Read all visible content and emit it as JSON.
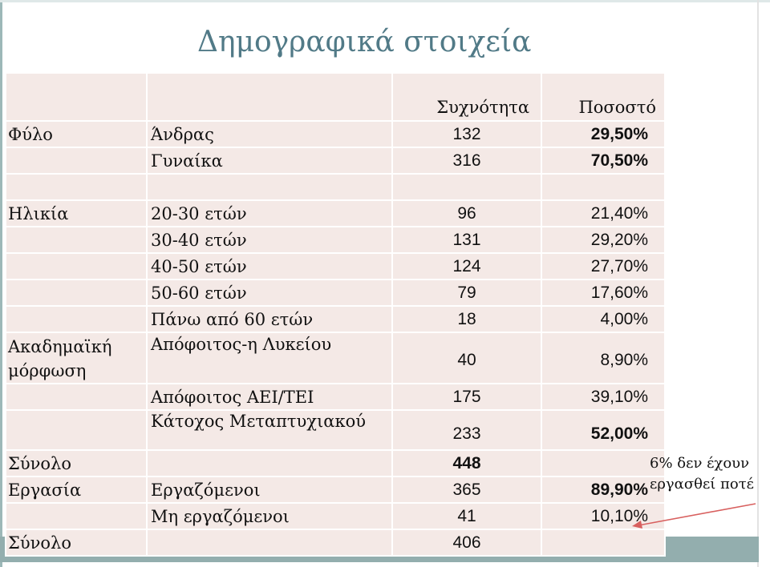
{
  "title": "Δημογραφικά στοιχεία",
  "header": {
    "frequency": "Συχνότητα",
    "percent": "Ποσοστό"
  },
  "rows": [
    {
      "category": "Φύλο",
      "item": "Άνδρας",
      "freq": "132",
      "pct": "29,50%"
    },
    {
      "category": "",
      "item": "Γυναίκα",
      "freq": "316",
      "pct": "70,50%"
    },
    {
      "category": "",
      "item": "",
      "freq": "",
      "pct": ""
    },
    {
      "category": "Ηλικία",
      "item": "20-30 ετών",
      "freq": "96",
      "pct": "21,40%"
    },
    {
      "category": "",
      "item": "30-40 ετών",
      "freq": "131",
      "pct": "29,20%"
    },
    {
      "category": "",
      "item": "40-50 ετών",
      "freq": "124",
      "pct": "27,70%"
    },
    {
      "category": "",
      "item": "50-60 ετών",
      "freq": "79",
      "pct": "17,60%"
    },
    {
      "category": "",
      "item": "Πάνω από 60 ετών",
      "freq": "18",
      "pct": "4,00%"
    },
    {
      "category": "Ακαδημαϊκή μόρφωση",
      "item": "Απόφοιτος-η Λυκείου",
      "freq": "40",
      "pct": "8,90%"
    },
    {
      "category": "",
      "item": "Απόφοιτος ΑΕΙ/ΤΕΙ",
      "freq": "175",
      "pct": "39,10%"
    },
    {
      "category": "",
      "item": "Κάτοχος Μεταπτυχιακού",
      "freq": "233",
      "pct": "52,00%"
    },
    {
      "category": "Σύνολο",
      "item": "",
      "freq": "448",
      "pct": ""
    },
    {
      "category": "Εργασία",
      "item": "Εργαζόμενοι",
      "freq": "365",
      "pct": "89,90%"
    },
    {
      "category": "",
      "item": "Μη εργαζόμενοι",
      "freq": "41",
      "pct": "10,10%"
    },
    {
      "category": "Σύνολο",
      "item": "",
      "freq": "406",
      "pct": ""
    }
  ],
  "note": {
    "line1": "6% δεν έχουν",
    "line2": "εργασθεί ποτέ"
  }
}
